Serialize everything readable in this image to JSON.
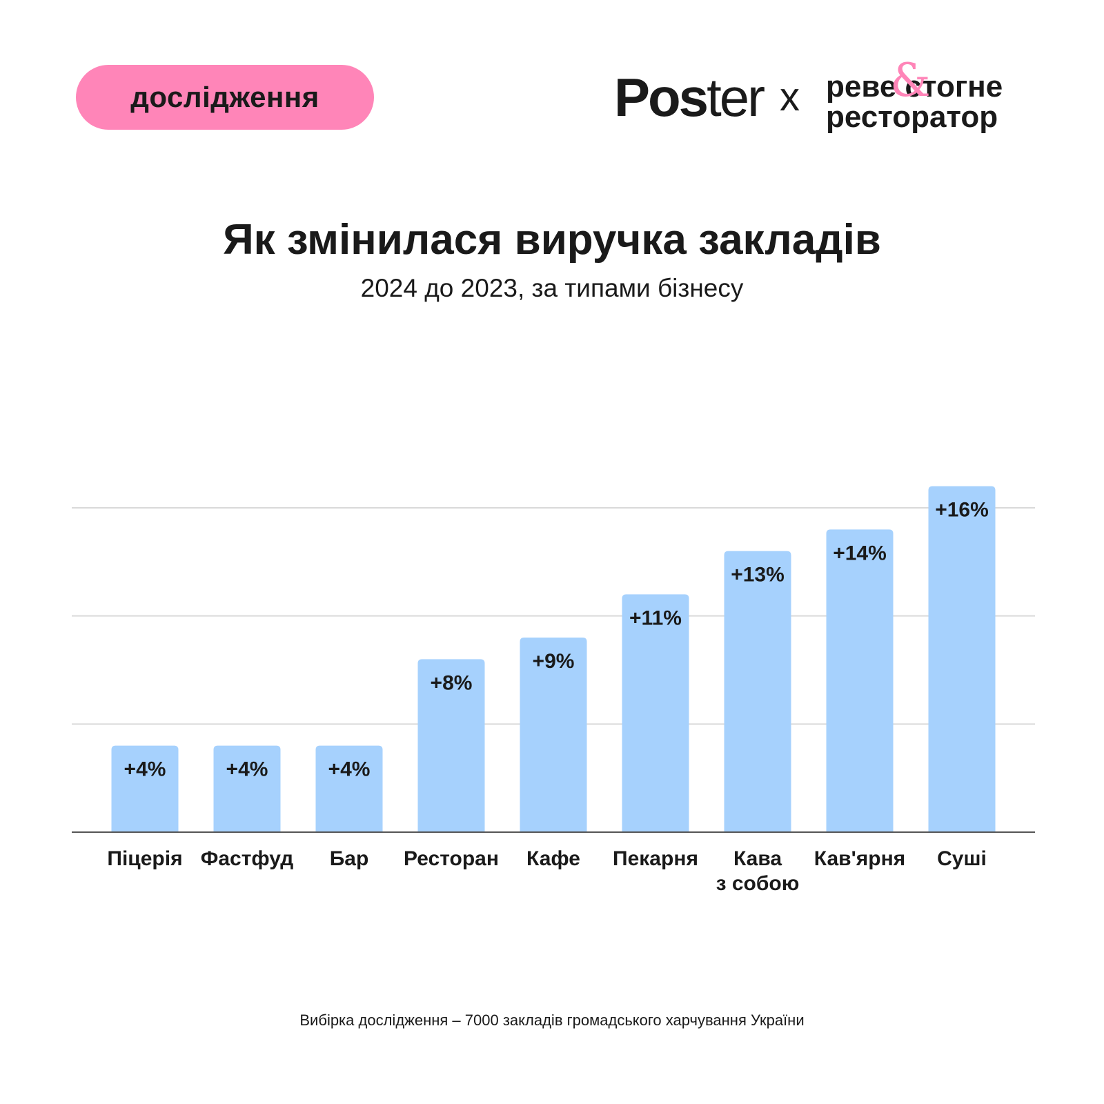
{
  "badge": {
    "label": "дослідження"
  },
  "logos": {
    "poster_bold": "Pos",
    "poster_light": "ter",
    "separator": "x",
    "partner_line1": "реве стогне",
    "partner_ampersand": "&",
    "partner_line2": "ресторатор"
  },
  "colors": {
    "bar": "#a6d1fd",
    "badge": "#ff85b8",
    "grid": "#d9d9d9",
    "axis": "#555555",
    "text": "#1a1a1a"
  },
  "footnote": "Вибірка дослідження – 7000 закладів громадського харчування України",
  "chart_data": {
    "type": "bar",
    "title": "Як змінилася виручка закладів",
    "subtitle": "2024 до 2023, за типами бізнесу",
    "xlabel": "",
    "ylabel": "",
    "unit": "%",
    "categories": [
      "Піцерія",
      "Фастфуд",
      "Бар",
      "Ресторан",
      "Кафе",
      "Пекарня",
      "Кава з собою",
      "Кав'ярня",
      "Суші"
    ],
    "category_lines": [
      [
        "Піцерія"
      ],
      [
        "Фастфуд"
      ],
      [
        "Бар"
      ],
      [
        "Ресторан"
      ],
      [
        "Кафе"
      ],
      [
        "Пекарня"
      ],
      [
        "Кава",
        "з собою"
      ],
      [
        "Кав'ярня"
      ],
      [
        "Суші"
      ]
    ],
    "values": [
      4,
      4,
      4,
      8,
      9,
      11,
      13,
      14,
      16
    ],
    "data_labels": [
      "+4%",
      "+4%",
      "+4%",
      "+8%",
      "+9%",
      "+11%",
      "+13%",
      "+14%",
      "+16%"
    ],
    "ylim": [
      0,
      15
    ],
    "gridlines": [
      5,
      10,
      15
    ],
    "grid": true,
    "legend": "none"
  }
}
